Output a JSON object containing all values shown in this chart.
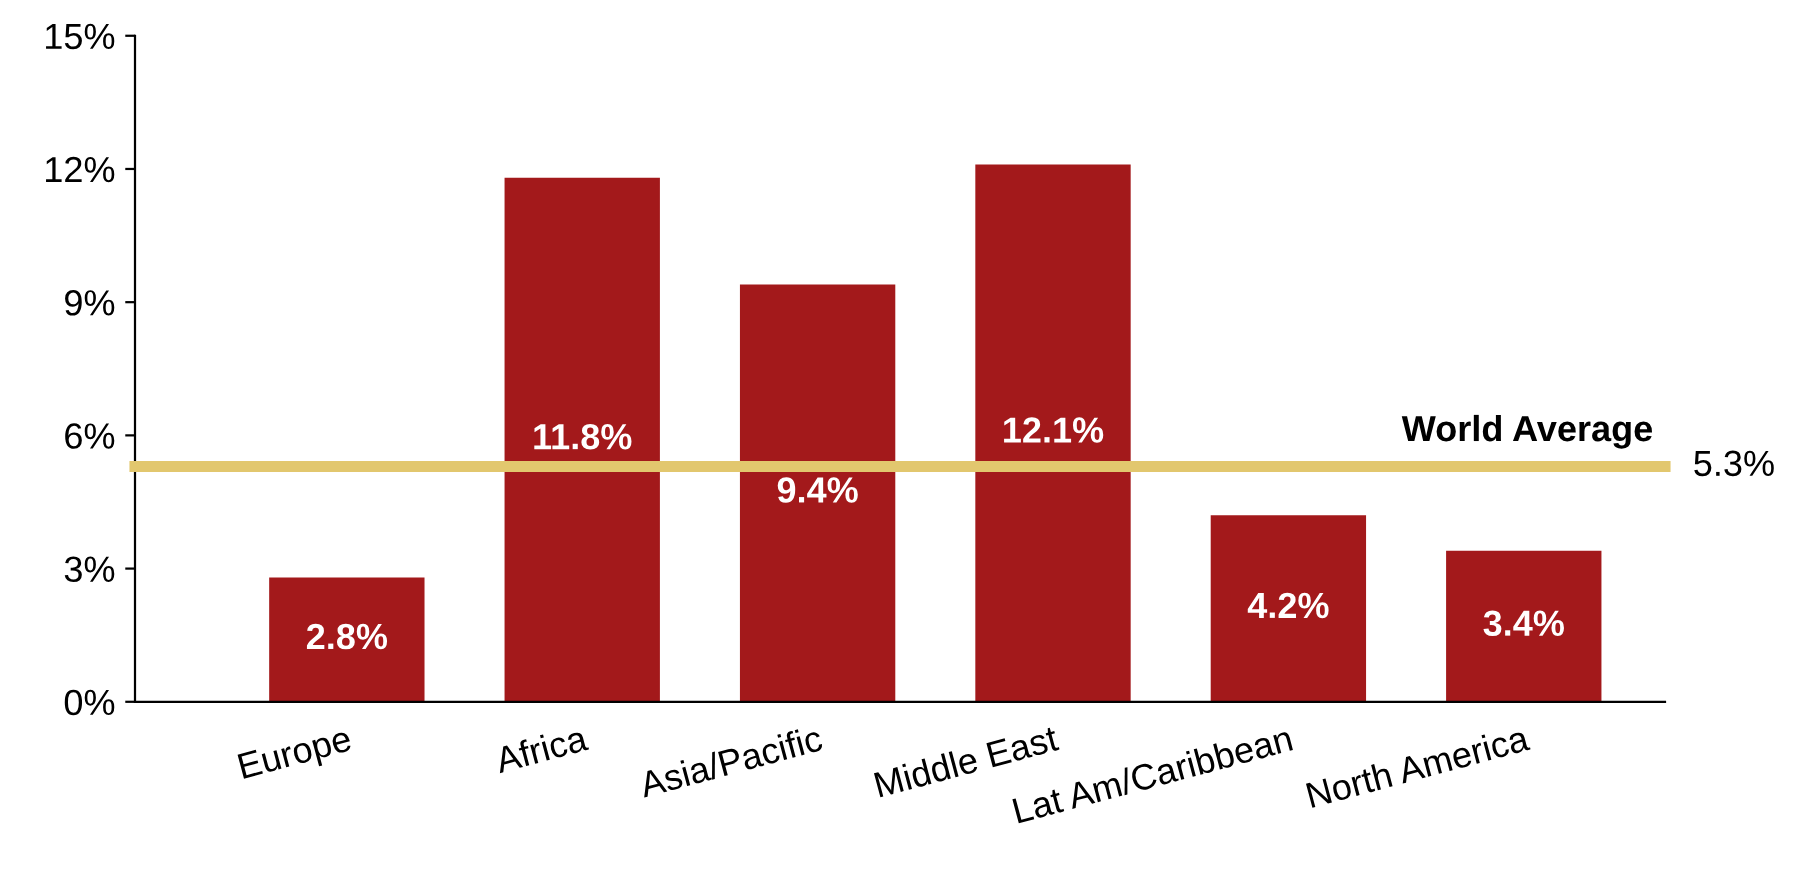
{
  "chart_data": {
    "type": "bar",
    "categories": [
      "Europe",
      "Africa",
      "Asia/Pacific",
      "Middle East",
      "Lat Am/Caribbean",
      "North America"
    ],
    "values": [
      2.8,
      11.8,
      9.4,
      12.1,
      4.2,
      3.4
    ],
    "value_labels": [
      "2.8%",
      "11.8%",
      "9.4%",
      "12.1%",
      "4.2%",
      "3.4%"
    ],
    "color": "#a3191b",
    "ylim": [
      0,
      15
    ],
    "yticks": [
      {
        "value": 0,
        "label": "0%"
      },
      {
        "value": 3,
        "label": "3%"
      },
      {
        "value": 6,
        "label": "6%"
      },
      {
        "value": 9,
        "label": "9%"
      },
      {
        "value": 12,
        "label": "12%"
      },
      {
        "value": 15,
        "label": "15%"
      }
    ],
    "ref_lines": [
      {
        "axis": "y",
        "value": 5.3,
        "label": "World Average",
        "color": "#e2c76e"
      }
    ],
    "annotations": [
      "5.3%"
    ],
    "grid": false,
    "legend": false
  }
}
